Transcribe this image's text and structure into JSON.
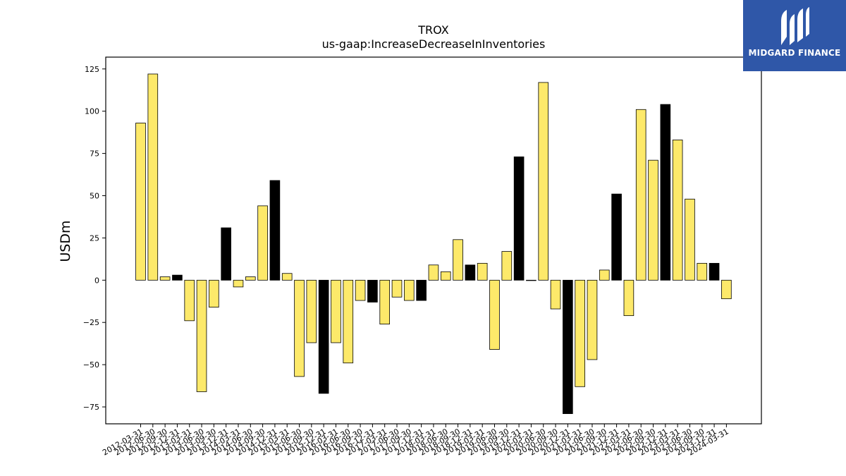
{
  "chart_data": {
    "type": "bar",
    "title": "TROX",
    "subtitle": "us-gaap:IncreaseDecreaseInInventories",
    "ylabel": "USDm",
    "xlabel": "",
    "ylim": [
      -85,
      132
    ],
    "yticks": [
      -75,
      -50,
      -25,
      0,
      25,
      50,
      75,
      100,
      125
    ],
    "grid": false,
    "colors": {
      "default": "#fde96a",
      "q4": "#000000",
      "edge": "#000000"
    },
    "categories": [
      "2012-03-31",
      "2012-06-30",
      "2012-09-30",
      "2012-12-31",
      "2013-03-31",
      "2013-06-30",
      "2013-09-30",
      "2013-12-31",
      "2014-03-31",
      "2014-06-30",
      "2014-09-30",
      "2014-12-31",
      "2015-03-31",
      "2015-06-30",
      "2015-09-30",
      "2015-12-31",
      "2016-03-31",
      "2016-06-30",
      "2016-09-30",
      "2016-12-31",
      "2017-03-31",
      "2017-06-30",
      "2017-09-30",
      "2017-12-31",
      "2018-03-31",
      "2018-06-30",
      "2018-09-30",
      "2018-12-31",
      "2019-03-31",
      "2019-06-30",
      "2019-09-30",
      "2019-12-31",
      "2020-03-31",
      "2020-06-30",
      "2020-09-30",
      "2020-12-31",
      "2021-03-31",
      "2021-06-30",
      "2021-09-30",
      "2021-12-31",
      "2022-03-31",
      "2022-06-30",
      "2022-09-30",
      "2022-12-31",
      "2023-03-31",
      "2023-06-30",
      "2023-09-30",
      "2023-12-31",
      "2024-03-31"
    ],
    "values": [
      93,
      122,
      2,
      3,
      -24,
      -66,
      -16,
      31,
      -4,
      2,
      44,
      59,
      4,
      -57,
      -37,
      -67,
      -37,
      -49,
      -12,
      -13,
      -26,
      -10,
      -12,
      -12,
      9,
      5,
      24,
      9,
      10,
      -41,
      17,
      73,
      0,
      117,
      -17,
      -79,
      -63,
      -47,
      6,
      51,
      -21,
      101,
      71,
      104,
      83,
      48,
      10,
      10,
      -11
    ]
  },
  "logo": {
    "text": "MIDGARD FINANCE",
    "icon": "midgard-logo-icon"
  }
}
